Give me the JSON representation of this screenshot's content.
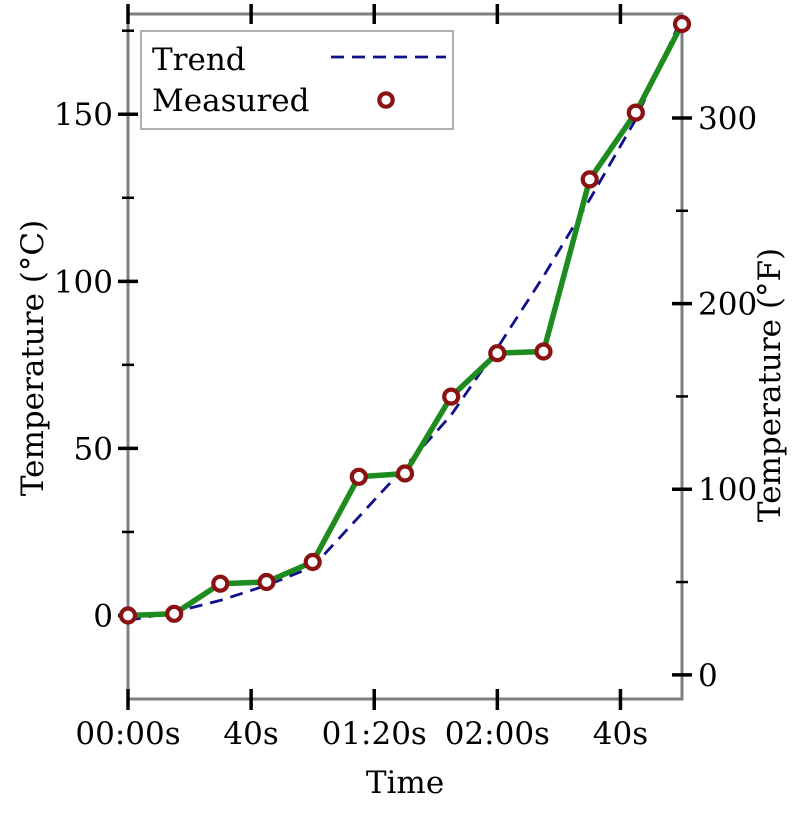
{
  "figure": {
    "background": "#ffffff",
    "title": ""
  },
  "axes": {
    "xlabel": "Time",
    "ylabel_left": "Temperature (°C)",
    "ylabel_right": "Temperature (°F)",
    "x_tick_labels": [
      {
        "t": 0,
        "label": "00:00s"
      },
      {
        "t": 40,
        "label": "40s"
      },
      {
        "t": 80,
        "label": "01:20s"
      },
      {
        "t": 120,
        "label": "02:00s"
      },
      {
        "t": 160,
        "label": "40s"
      }
    ],
    "y_left_major_ticks": [
      0,
      50,
      100,
      150
    ],
    "y_left_minor_ticks": [
      25,
      75,
      125,
      175
    ],
    "y_right_major_ticks": [
      0,
      100,
      200,
      300
    ],
    "y_right_minor_ticks": [
      50,
      150,
      250,
      350
    ]
  },
  "legend": {
    "entries": [
      {
        "label": "Trend",
        "marker": "dashed-line-sample"
      },
      {
        "label": "Measured",
        "marker": "open-circle-sample"
      }
    ]
  },
  "chart_data": {
    "type": "line",
    "title": "",
    "xlabel": "Time",
    "ylabel": "Temperature (°C)",
    "ylabel_right": "Temperature (°F)",
    "x_unit": "seconds",
    "x": [
      0,
      15,
      30,
      45,
      60,
      75,
      90,
      105,
      120,
      135,
      150,
      165,
      180
    ],
    "xlim": [
      0,
      180
    ],
    "ylim_c": [
      -25,
      180
    ],
    "ylim_f": [
      -13,
      356
    ],
    "grid": false,
    "legend_position": "upper-left",
    "series": [
      {
        "name": "Trend",
        "style": "dashed",
        "color": "#10108c",
        "values": [
          -1.5,
          1,
          4.5,
          9,
          14.5,
          29.5,
          44.5,
          60,
          80,
          101.5,
          124.5,
          148.5,
          179
        ]
      },
      {
        "name": "Measured",
        "style": "solid-line-open-circles",
        "line_color": "#1e8b1e",
        "marker_color": "#8b1212",
        "values": [
          0,
          0.5,
          9.5,
          10,
          16,
          41.5,
          42.5,
          65.5,
          78.5,
          79,
          130.5,
          150.5,
          177
        ]
      }
    ]
  },
  "colors": {
    "spine": "#7f7f7f",
    "tick": "#000000",
    "text": "#000000",
    "trend_line": "#10108c",
    "measured_line": "#1e8b1e",
    "measured_marker_edge": "#8b1212",
    "marker_fill": "#ffffff",
    "legend_border": "#b0b0b0",
    "legend_background": "#ffffff"
  }
}
